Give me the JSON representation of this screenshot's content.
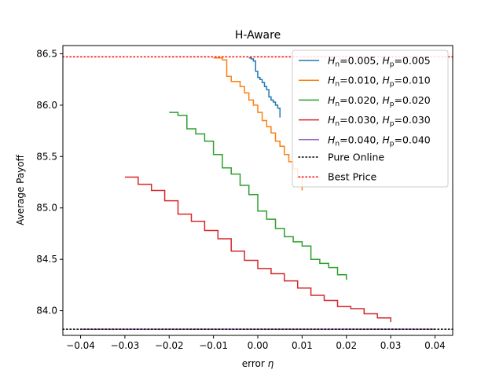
{
  "chart_data": {
    "type": "line",
    "title": "H-Aware",
    "xlabel": "error η",
    "ylabel": "Average Payoff",
    "xlim": [
      -0.044,
      0.044
    ],
    "ylim": [
      83.76,
      86.58
    ],
    "xticks": [
      "−0.04",
      "−0.03",
      "−0.02",
      "−0.01",
      "0.00",
      "0.01",
      "0.02",
      "0.03",
      "0.04"
    ],
    "xtick_values": [
      -0.04,
      -0.03,
      -0.02,
      -0.01,
      0.0,
      0.01,
      0.02,
      0.03,
      0.04
    ],
    "yticks": [
      "84.0",
      "84.5",
      "85.0",
      "85.5",
      "86.0",
      "86.5"
    ],
    "ytick_values": [
      84.0,
      84.5,
      85.0,
      85.5,
      86.0,
      86.5
    ],
    "grid": false,
    "legend_position": "top-right",
    "series": [
      {
        "name": "Hn=0.005, Hp=0.005",
        "label_parts": {
          "a": "H",
          "a_sub": "n",
          "mid": "=0.005, ",
          "b": "H",
          "b_sub": "p",
          "end": "=0.005"
        },
        "color": "#1f77b4",
        "x": [
          -0.002,
          -0.0015,
          -0.001,
          -0.0005,
          0.0,
          0.0005,
          0.001,
          0.0015,
          0.002,
          0.0025,
          0.003,
          0.0035,
          0.004,
          0.0045,
          0.005
        ],
        "y": [
          86.46,
          86.45,
          86.43,
          86.33,
          86.27,
          86.25,
          86.22,
          86.18,
          86.15,
          86.08,
          86.05,
          86.03,
          86.0,
          85.97,
          85.88
        ]
      },
      {
        "name": "Hn=0.010, Hp=0.010",
        "label_parts": {
          "a": "H",
          "a_sub": "n",
          "mid": "=0.010, ",
          "b": "H",
          "b_sub": "p",
          "end": "=0.010"
        },
        "color": "#ff7f0e",
        "x": [
          -0.01,
          -0.008,
          -0.007,
          -0.006,
          -0.004,
          -0.003,
          -0.002,
          -0.001,
          0.0,
          0.001,
          0.002,
          0.003,
          0.004,
          0.005,
          0.006,
          0.007,
          0.008,
          0.009,
          0.01
        ],
        "y": [
          86.46,
          86.44,
          86.28,
          86.23,
          86.18,
          86.12,
          86.05,
          86.0,
          85.93,
          85.85,
          85.79,
          85.73,
          85.65,
          85.6,
          85.52,
          85.45,
          85.38,
          85.3,
          85.17
        ]
      },
      {
        "name": "Hn=0.020, Hp=0.020",
        "label_parts": {
          "a": "H",
          "a_sub": "n",
          "mid": "=0.020, ",
          "b": "H",
          "b_sub": "p",
          "end": "=0.020"
        },
        "color": "#2ca02c",
        "x": [
          -0.02,
          -0.018,
          -0.016,
          -0.014,
          -0.012,
          -0.01,
          -0.008,
          -0.006,
          -0.004,
          -0.002,
          0.0,
          0.002,
          0.004,
          0.006,
          0.008,
          0.01,
          0.012,
          0.014,
          0.016,
          0.018,
          0.02
        ],
        "y": [
          85.93,
          85.9,
          85.77,
          85.72,
          85.65,
          85.52,
          85.39,
          85.33,
          85.22,
          85.13,
          84.97,
          84.89,
          84.8,
          84.72,
          84.67,
          84.63,
          84.5,
          84.46,
          84.42,
          84.35,
          84.3
        ]
      },
      {
        "name": "Hn=0.030, Hp=0.030",
        "label_parts": {
          "a": "H",
          "a_sub": "n",
          "mid": "=0.030, ",
          "b": "H",
          "b_sub": "p",
          "end": "=0.030"
        },
        "color": "#d62728",
        "x": [
          -0.03,
          -0.027,
          -0.024,
          -0.021,
          -0.018,
          -0.015,
          -0.012,
          -0.009,
          -0.006,
          -0.003,
          0.0,
          0.003,
          0.006,
          0.009,
          0.012,
          0.015,
          0.018,
          0.021,
          0.024,
          0.027,
          0.03
        ],
        "y": [
          85.3,
          85.23,
          85.17,
          85.07,
          84.94,
          84.87,
          84.78,
          84.7,
          84.58,
          84.49,
          84.41,
          84.36,
          84.29,
          84.22,
          84.15,
          84.1,
          84.04,
          84.02,
          83.97,
          83.93,
          83.89
        ]
      },
      {
        "name": "Hn=0.040, Hp=0.040",
        "label_parts": {
          "a": "H",
          "a_sub": "n",
          "mid": "=0.040, ",
          "b": "H",
          "b_sub": "p",
          "end": "=0.040"
        },
        "color": "#9467bd",
        "x": [
          -0.04,
          0.04
        ],
        "y": [
          83.82,
          83.82
        ]
      }
    ],
    "reference_lines": [
      {
        "name": "Pure Online",
        "value": 83.82,
        "color": "#000000",
        "style": "dotted"
      },
      {
        "name": "Best Price",
        "value": 86.47,
        "color": "#ff0000",
        "style": "dotted"
      }
    ]
  }
}
